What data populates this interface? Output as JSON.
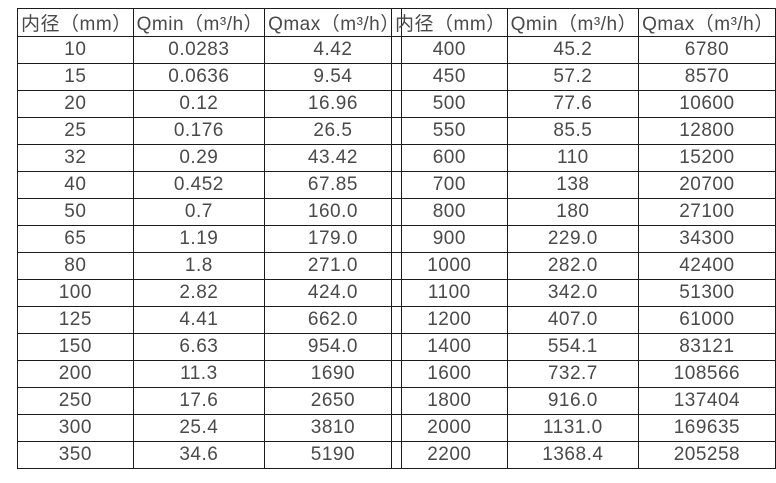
{
  "page": {
    "background": "#ffffff",
    "border_color": "#1c1c1c",
    "text_color": "#4a4a4a"
  },
  "tables": [
    {
      "name": "flow-range-table-small-diameters",
      "headers": [
        "内径（mm）",
        "Qmin（m³/h）",
        "Qmax（m³/h）"
      ],
      "rows": [
        [
          "10",
          "0.0283",
          "4.42"
        ],
        [
          "15",
          "0.0636",
          "9.54"
        ],
        [
          "20",
          "0.12",
          "16.96"
        ],
        [
          "25",
          "0.176",
          "26.5"
        ],
        [
          "32",
          "0.29",
          "43.42"
        ],
        [
          "40",
          "0.452",
          "67.85"
        ],
        [
          "50",
          "0.7",
          "160.0"
        ],
        [
          "65",
          "1.19",
          "179.0"
        ],
        [
          "80",
          "1.8",
          "271.0"
        ],
        [
          "100",
          "2.82",
          "424.0"
        ],
        [
          "125",
          "4.41",
          "662.0"
        ],
        [
          "150",
          "6.63",
          "954.0"
        ],
        [
          "200",
          "11.3",
          "1690"
        ],
        [
          "250",
          "17.6",
          "2650"
        ],
        [
          "300",
          "25.4",
          "3810"
        ],
        [
          "350",
          "34.6",
          "5190"
        ]
      ]
    },
    {
      "name": "flow-range-table-large-diameters",
      "headers": [
        "内径（mm）",
        "Qmin（m³/h）",
        "Qmax（m³/h）"
      ],
      "rows": [
        [
          "400",
          "45.2",
          "6780"
        ],
        [
          "450",
          "57.2",
          "8570"
        ],
        [
          "500",
          "77.6",
          "10600"
        ],
        [
          "550",
          "85.5",
          "12800"
        ],
        [
          "600",
          "110",
          "15200"
        ],
        [
          "700",
          "138",
          "20700"
        ],
        [
          "800",
          "180",
          "27100"
        ],
        [
          "900",
          "229.0",
          "34300"
        ],
        [
          "1000",
          "282.0",
          "42400"
        ],
        [
          "1100",
          "342.0",
          "51300"
        ],
        [
          "1200",
          "407.0",
          "61000"
        ],
        [
          "1400",
          "554.1",
          "83121"
        ],
        [
          "1600",
          "732.7",
          "108566"
        ],
        [
          "1800",
          "916.0",
          "137404"
        ],
        [
          "2000",
          "1131.0",
          "169635"
        ],
        [
          "2200",
          "1368.4",
          "205258"
        ]
      ]
    }
  ]
}
